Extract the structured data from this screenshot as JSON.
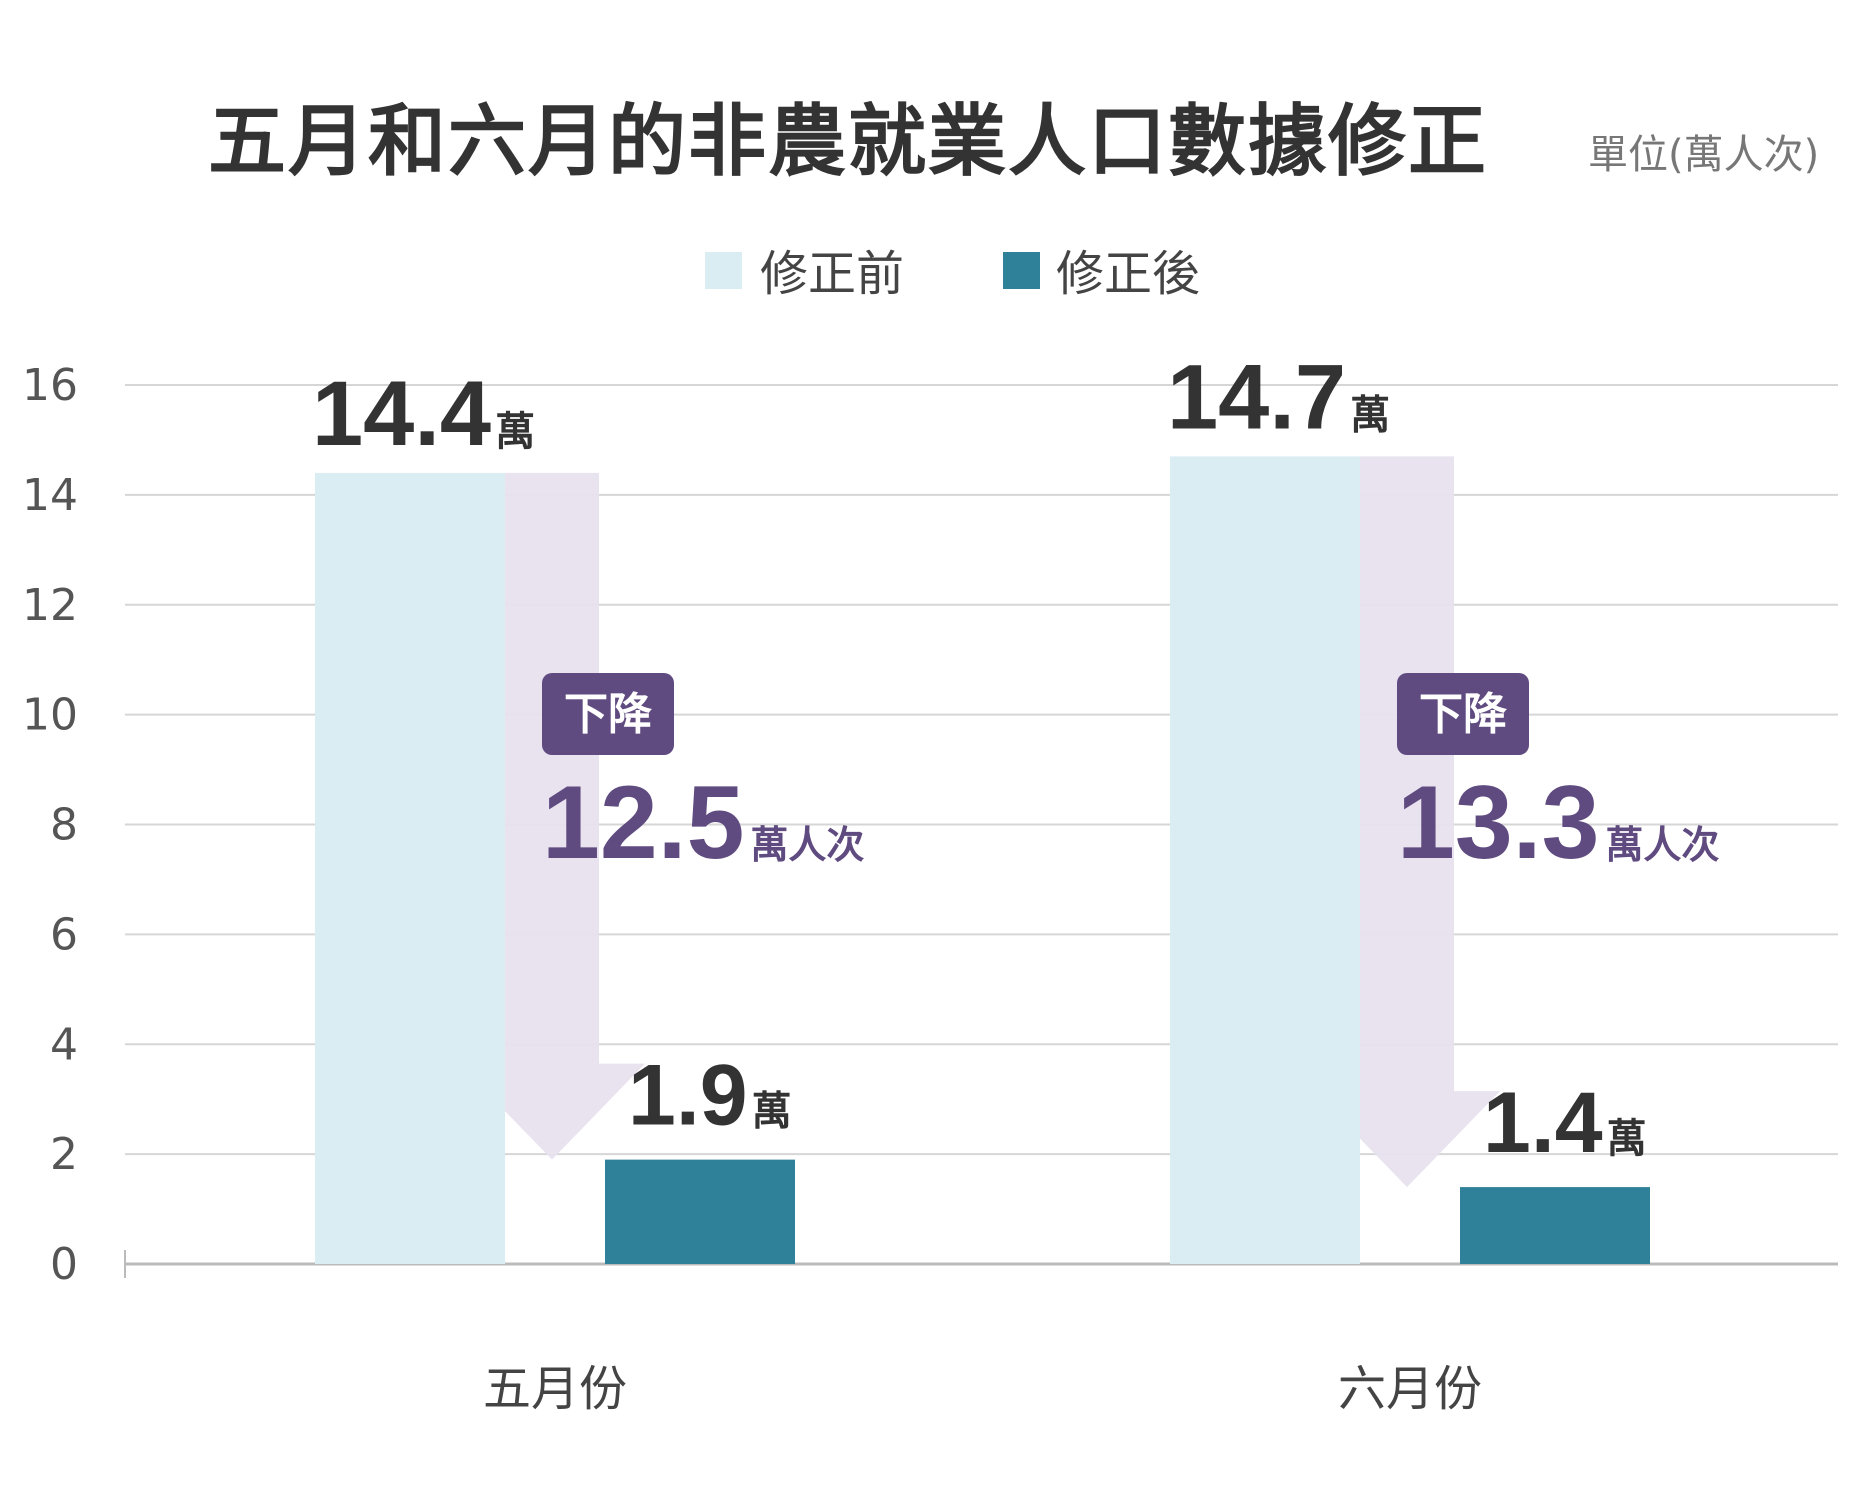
{
  "chart_data": {
    "type": "bar",
    "title": "五月和六月的非農就業人口數據修正",
    "unit_label": "單位(萬人次)",
    "categories": [
      "五月份",
      "六月份"
    ],
    "series": [
      {
        "name": "修正前",
        "values": [
          14.4,
          14.7
        ],
        "labels": [
          "14.4",
          "14.7"
        ],
        "color": "#daedf3"
      },
      {
        "name": "修正後",
        "values": [
          1.9,
          1.4
        ],
        "labels": [
          "1.9",
          "1.4"
        ],
        "color": "#2e8199"
      }
    ],
    "value_unit": "萬",
    "ylim": [
      0,
      16
    ],
    "yticks": [
      "0",
      "2",
      "4",
      "6",
      "8",
      "10",
      "12",
      "14",
      "16"
    ],
    "grid": true,
    "legend_position": "top-center",
    "annotations": [
      {
        "badge": "下降",
        "value": "12.5",
        "unit": "萬人次"
      },
      {
        "badge": "下降",
        "value": "13.3",
        "unit": "萬人次"
      }
    ],
    "arrow_color": "#e7e2ee",
    "badge_color": "#5f4b80"
  }
}
